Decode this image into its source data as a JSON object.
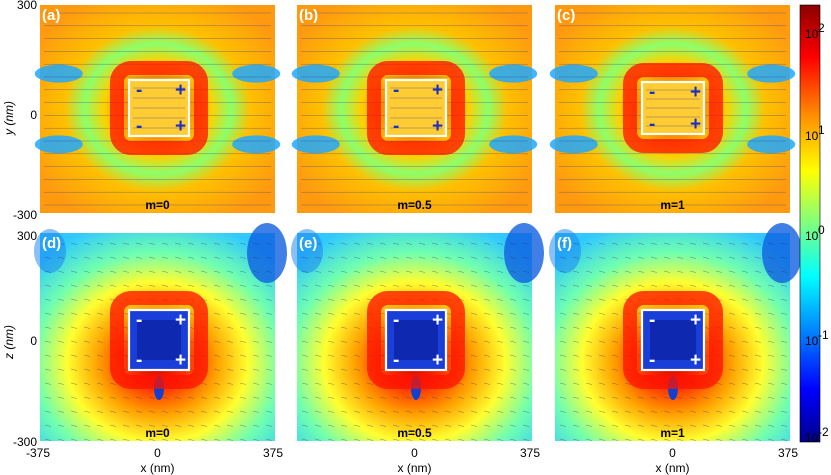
{
  "panels": [
    {
      "label": "(a)",
      "m": "m=0",
      "charges": [
        "-",
        "+",
        "-",
        "+"
      ],
      "charge_color": "#1c2fc4",
      "map": "xy"
    },
    {
      "label": "(b)",
      "m": "m=0.5",
      "charges": [
        "-",
        "+",
        "-",
        "+"
      ],
      "charge_color": "#1c2fc4",
      "map": "xy"
    },
    {
      "label": "(c)",
      "m": "m=1",
      "charges": [
        "-",
        "+",
        "-",
        "+"
      ],
      "charge_color": "#1c2fc4",
      "map": "xy"
    },
    {
      "label": "(d)",
      "m": "m=0",
      "charges": [
        "-",
        "+",
        "-",
        "+"
      ],
      "charge_color": "#ffffff",
      "map": "xz"
    },
    {
      "label": "(e)",
      "m": "m=0.5",
      "charges": [
        "-",
        "+",
        "-",
        "+"
      ],
      "charge_color": "#ffffff",
      "map": "xz"
    },
    {
      "label": "(f)",
      "m": "m=1",
      "charges": [
        "-",
        "+",
        "-",
        "+"
      ],
      "charge_color": "#ffffff",
      "map": "xz"
    }
  ],
  "axes": {
    "y_top_label": "y (nm)",
    "y_bottom_label": "z (nm)",
    "y_ticks": [
      "300",
      "0",
      "-300"
    ],
    "x_label": "x (nm)",
    "x_ticks": [
      "-375",
      "0",
      "375"
    ]
  },
  "colorbar": {
    "scale": "log",
    "labels": [
      "10",
      "10",
      "10",
      "10",
      "10"
    ],
    "exponents": [
      "2",
      "1",
      "0",
      "-1",
      "-2"
    ],
    "colors": [
      "#8b0000",
      "#ff0000",
      "#ff8c00",
      "#ffff00",
      "#7fff7f",
      "#00ffff",
      "#0080ff",
      "#0000ff",
      "#00008b"
    ]
  }
}
